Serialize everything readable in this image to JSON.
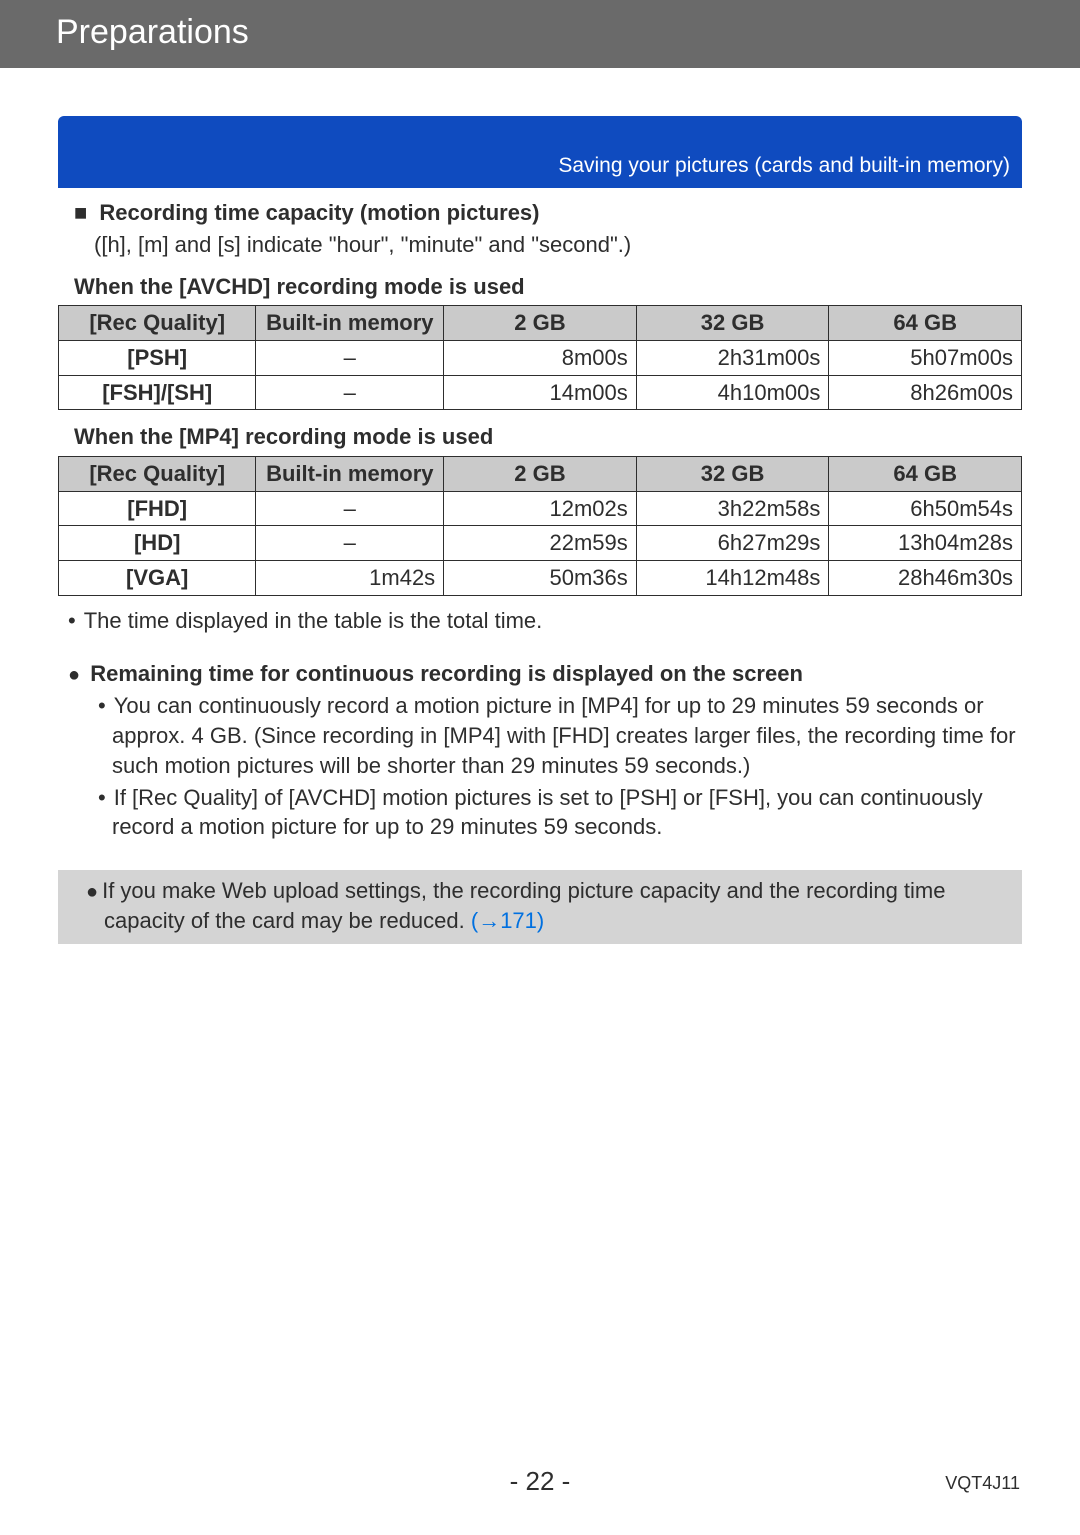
{
  "header": {
    "title": "Preparations"
  },
  "banner": {
    "text": "Saving your pictures (cards and built-in memory)"
  },
  "section": {
    "title": "Recording time capacity (motion pictures)",
    "subtext": "([h], [m] and [s] indicate \"hour\", \"minute\" and \"second\".)"
  },
  "avchd": {
    "caption": "When the [AVCHD] recording mode is used",
    "columns": [
      "[Rec Quality]",
      "Built-in memory",
      "2 GB",
      "32 GB",
      "64 GB"
    ],
    "rows": [
      {
        "label": "[PSH]",
        "cells": [
          "–",
          "8m00s",
          "2h31m00s",
          "5h07m00s"
        ]
      },
      {
        "label": "[FSH]/[SH]",
        "cells": [
          "–",
          "14m00s",
          "4h10m00s",
          "8h26m00s"
        ]
      }
    ]
  },
  "mp4": {
    "caption": "When the [MP4] recording mode is used",
    "columns": [
      "[Rec Quality]",
      "Built-in memory",
      "2 GB",
      "32 GB",
      "64 GB"
    ],
    "rows": [
      {
        "label": "[FHD]",
        "cells": [
          "–",
          "12m02s",
          "3h22m58s",
          "6h50m54s"
        ]
      },
      {
        "label": "[HD]",
        "cells": [
          "–",
          "22m59s",
          "6h27m29s",
          "13h04m28s"
        ]
      },
      {
        "label": "[VGA]",
        "cells": [
          "1m42s",
          "50m36s",
          "14h12m48s",
          "28h46m30s"
        ]
      }
    ]
  },
  "note_after_tables": "The time displayed in the table is the total time.",
  "remaining": {
    "heading": "Remaining time for continuous recording is displayed on the screen",
    "bullets": [
      "You can continuously record a motion picture in [MP4] for up to 29 minutes 59 seconds or approx. 4 GB. (Since recording in [MP4] with [FHD] creates larger files, the recording time for such motion pictures will be shorter than 29 minutes 59 seconds.)",
      "If [Rec Quality] of [AVCHD] motion pictures is set to [PSH] or [FSH], you can continuously record a motion picture for up to 29 minutes 59 seconds."
    ]
  },
  "gray_note": {
    "text": "If you make Web upload settings, the recording picture capacity and the recording time capacity of the card may be reduced. ",
    "link": "(→171)"
  },
  "footer": {
    "page": "- 22 -",
    "doc_code": "VQT4J11"
  },
  "colors": {
    "header_bg": "#6a6a6a",
    "banner_bg": "#0f4bbf",
    "table_header_bg": "#cacaca",
    "gray_note_bg": "#d4d4d4",
    "link": "#0070e0",
    "text": "#2e2e2e"
  },
  "col_widths_pct": [
    20.5,
    19.5,
    20,
    20,
    20
  ]
}
